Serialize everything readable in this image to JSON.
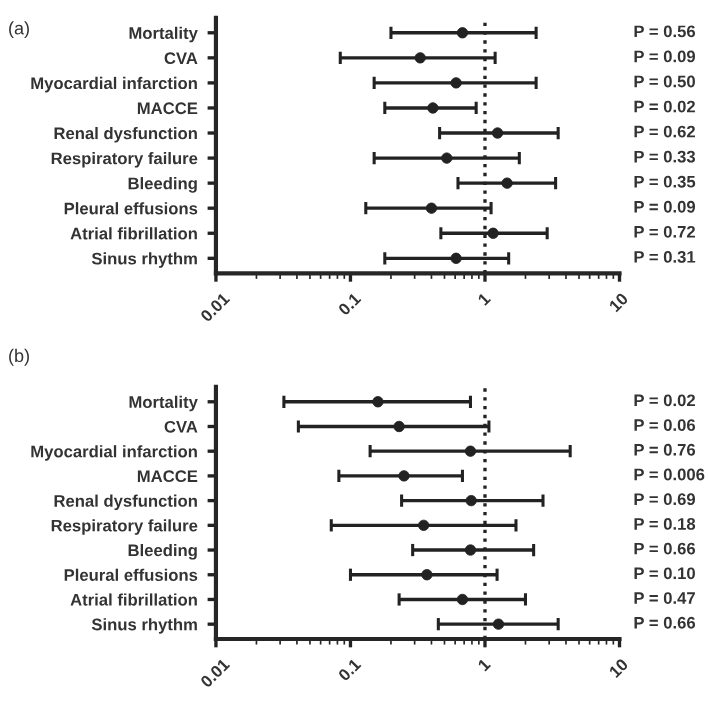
{
  "chart_data": [
    {
      "type": "scatter",
      "title": "(a)",
      "orientation": "horizontal",
      "log": "x",
      "xlim": [
        0.01,
        10
      ],
      "xticks": [
        0.01,
        0.1,
        1,
        10
      ],
      "color": "#222222",
      "marker": "circle",
      "categories": [
        "Mortality",
        "CVA",
        "Myocardial infarction",
        "MACCE",
        "Renal dysfunction",
        "Respiratory failure",
        "Bleeding",
        "Pleural effusions",
        "Atrial fibrillation",
        "Sinus rhythm"
      ],
      "values": [
        0.68,
        0.33,
        0.61,
        0.41,
        1.24,
        0.52,
        1.46,
        0.4,
        1.15,
        0.61
      ],
      "errors": [
        [
          0.2,
          2.4
        ],
        [
          0.084,
          1.19
        ],
        [
          0.15,
          2.4
        ],
        [
          0.18,
          0.86
        ],
        [
          0.46,
          3.5
        ],
        [
          0.15,
          1.8
        ],
        [
          0.63,
          3.35
        ],
        [
          0.13,
          1.11
        ],
        [
          0.47,
          2.9
        ],
        [
          0.18,
          1.5
        ]
      ],
      "ref_lines": [
        {
          "axis": "x",
          "value": 1,
          "line_style": "dotted",
          "color": "#222222"
        }
      ],
      "annotations": [
        "P = 0.56",
        "P = 0.09",
        "P = 0.50",
        "P = 0.02",
        "P = 0.62",
        "P = 0.33",
        "P = 0.35",
        "P = 0.09",
        "P = 0.72",
        "P = 0.31"
      ]
    },
    {
      "type": "scatter",
      "title": "(b)",
      "orientation": "horizontal",
      "log": "x",
      "xlim": [
        0.01,
        10
      ],
      "xticks": [
        0.01,
        0.1,
        1,
        10
      ],
      "color": "#222222",
      "marker": "circle",
      "categories": [
        "Mortality",
        "CVA",
        "Myocardial infarction",
        "MACCE",
        "Renal dysfunction",
        "Respiratory failure",
        "Bleeding",
        "Pleural effusions",
        "Atrial fibrillation",
        "Sinus rhythm"
      ],
      "values": [
        0.16,
        0.23,
        0.78,
        0.25,
        0.79,
        0.35,
        0.78,
        0.37,
        0.68,
        1.26
      ],
      "errors": [
        [
          0.032,
          0.78
        ],
        [
          0.041,
          1.07
        ],
        [
          0.14,
          4.3
        ],
        [
          0.082,
          0.68
        ],
        [
          0.24,
          2.7
        ],
        [
          0.072,
          1.7
        ],
        [
          0.29,
          2.3
        ],
        [
          0.1,
          1.23
        ],
        [
          0.23,
          2.0
        ],
        [
          0.45,
          3.5
        ]
      ],
      "ref_lines": [
        {
          "axis": "x",
          "value": 1,
          "line_style": "dotted",
          "color": "#222222"
        }
      ],
      "annotations": [
        "P = 0.02",
        "P = 0.06",
        "P = 0.76",
        "P = 0.006",
        "P = 0.69",
        "P = 0.18",
        "P = 0.66",
        "P = 0.10",
        "P = 0.47",
        "P = 0.66"
      ]
    }
  ]
}
